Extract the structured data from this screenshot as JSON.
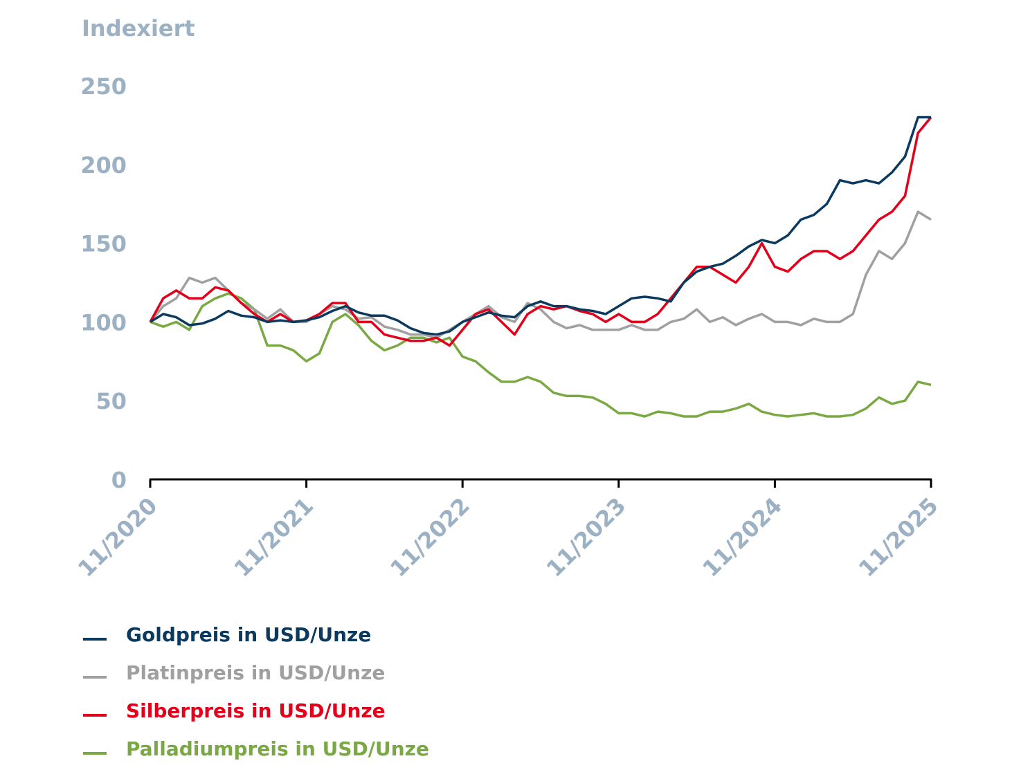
{
  "chart_data": {
    "type": "line",
    "title": "",
    "ylabel": "Indexiert",
    "xlabel": "",
    "ylim": [
      0,
      250
    ],
    "yticks": [
      "0",
      "50",
      "100",
      "150",
      "200",
      "250"
    ],
    "xticks": [
      "11/2020",
      "11/2021",
      "11/2022",
      "11/2023",
      "11/2024",
      "11/2025"
    ],
    "x_note": "monthly points from 11/2020 (index 0) to 11/2025 (index 60)",
    "grid": false,
    "legend_position": "bottom-left",
    "series": [
      {
        "name": "Goldpreis in USD/Unze",
        "color": "#0b3a5e",
        "values": [
          100,
          105,
          103,
          98,
          99,
          102,
          107,
          104,
          103,
          100,
          101,
          100,
          101,
          103,
          107,
          110,
          106,
          104,
          104,
          101,
          96,
          93,
          92,
          94,
          100,
          103,
          106,
          104,
          103,
          110,
          113,
          110,
          110,
          108,
          107,
          105,
          110,
          115,
          116,
          115,
          113,
          125,
          132,
          135,
          137,
          142,
          148,
          152,
          150,
          155,
          165,
          168,
          175,
          190,
          188,
          190,
          188,
          195,
          205,
          230,
          230
        ]
      },
      {
        "name": "Platinpreis in USD/Unze",
        "color": "#a0a0a0",
        "values": [
          100,
          110,
          115,
          128,
          125,
          128,
          120,
          112,
          108,
          102,
          108,
          100,
          100,
          105,
          110,
          108,
          102,
          103,
          97,
          95,
          92,
          92,
          90,
          95,
          100,
          105,
          110,
          103,
          100,
          112,
          108,
          100,
          96,
          98,
          95,
          95,
          95,
          98,
          95,
          95,
          100,
          102,
          108,
          100,
          103,
          98,
          102,
          105,
          100,
          100,
          98,
          102,
          100,
          100,
          105,
          130,
          145,
          140,
          150,
          170,
          165
        ]
      },
      {
        "name": "Silberpreis in USD/Unze",
        "color": "#e2001a",
        "values": [
          100,
          115,
          120,
          115,
          115,
          122,
          120,
          112,
          105,
          100,
          105,
          100,
          101,
          105,
          112,
          112,
          100,
          100,
          92,
          90,
          88,
          88,
          90,
          85,
          95,
          105,
          108,
          100,
          92,
          105,
          110,
          108,
          110,
          107,
          105,
          100,
          105,
          100,
          100,
          105,
          115,
          125,
          135,
          135,
          130,
          125,
          135,
          150,
          135,
          132,
          140,
          145,
          145,
          140,
          145,
          155,
          165,
          170,
          180,
          220,
          230
        ]
      },
      {
        "name": "Palladiumpreis in USD/Unze",
        "color": "#7aa843",
        "values": [
          100,
          97,
          100,
          95,
          110,
          115,
          118,
          115,
          108,
          85,
          85,
          82,
          75,
          80,
          100,
          105,
          98,
          88,
          82,
          85,
          90,
          90,
          87,
          90,
          78,
          75,
          68,
          62,
          62,
          65,
          62,
          55,
          53,
          53,
          52,
          48,
          42,
          42,
          40,
          43,
          42,
          40,
          40,
          43,
          43,
          45,
          48,
          43,
          41,
          40,
          41,
          42,
          40,
          40,
          41,
          45,
          52,
          48,
          50,
          62,
          60
        ]
      }
    ]
  }
}
